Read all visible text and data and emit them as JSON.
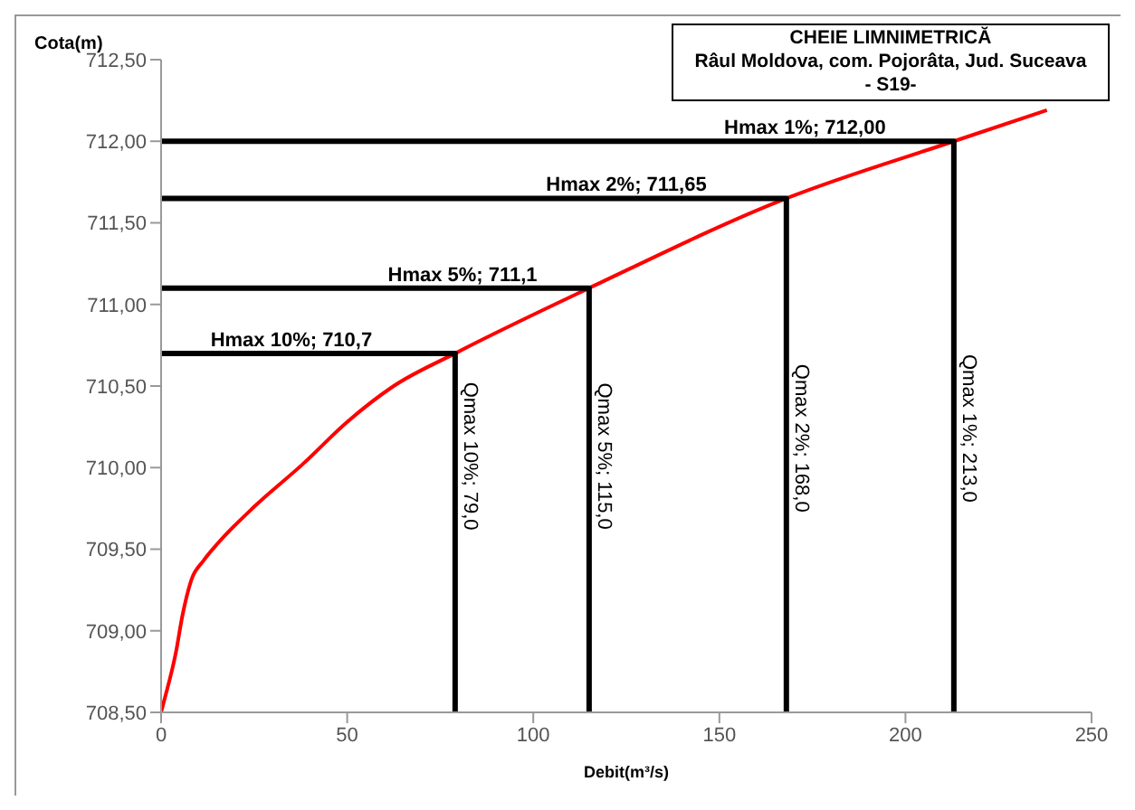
{
  "chart_data": {
    "type": "line",
    "title": "CHEIE LIMNIMETRICĂ",
    "subtitle": "Râul Moldova, com. Pojorâta, Jud. Suceava",
    "xlabel": "Debit(m³/s)",
    "ylabel": "Cota(m)",
    "marker": "none",
    "line_style": "solid",
    "xlim": [
      0,
      250
    ],
    "xticks": [
      0,
      50,
      100,
      150,
      200,
      250
    ],
    "ylim": [
      708.5,
      712.5
    ],
    "yticks": [
      {
        "value": 708.5,
        "label": "708,50"
      },
      {
        "value": 709,
        "label": "709,00"
      },
      {
        "value": 709.5,
        "label": "709,50"
      },
      {
        "value": 710,
        "label": "710,00"
      },
      {
        "value": 710.5,
        "label": "710,50"
      },
      {
        "value": 711,
        "label": "711,00"
      },
      {
        "value": 711.5,
        "label": "711,50"
      },
      {
        "value": 712,
        "label": "712,00"
      },
      {
        "value": 712.5,
        "label": "712,50"
      }
    ],
    "series": [
      {
        "color": "#ff0000",
        "x": [
          0,
          0.8,
          4,
          5.7,
          8.1,
          11.4,
          15.4,
          25,
          38,
          50,
          62.5,
          79,
          115,
          168,
          213,
          238
        ],
        "values": [
          708.5,
          708.57,
          708.87,
          709.09,
          709.31,
          709.43,
          709.54,
          709.76,
          710.02,
          710.28,
          710.5,
          710.7,
          711.1,
          711.65,
          712,
          712.19
        ]
      },
      {
        "color": "#000000",
        "x": [
          0,
          79,
          79
        ],
        "values": [
          710.7,
          710.7,
          708.5
        ]
      },
      {
        "color": "#000000",
        "x": [
          0,
          115,
          115
        ],
        "values": [
          711.1,
          711.1,
          708.5
        ]
      },
      {
        "color": "#000000",
        "x": [
          0,
          168,
          168
        ],
        "values": [
          711.65,
          711.65,
          708.5
        ]
      },
      {
        "color": "#000000",
        "x": [
          0,
          213,
          213
        ],
        "values": [
          712,
          712,
          708.5
        ]
      }
    ],
    "annotations": [
      "- S19-",
      {
        "text": "Hmax 10%; 710,7",
        "x": 35,
        "y": 710.7
      },
      {
        "text": "Hmax 5%; 711,1",
        "x": 81,
        "y": 711.1
      },
      {
        "text": "Hmax 2%; 711,65",
        "x": 125,
        "y": 711.65
      },
      {
        "text": "Hmax 1%; 712,00",
        "x": 173,
        "y": 712
      },
      {
        "text": "Qmax 10%; 79,0",
        "x": 79,
        "y": 710.07
      },
      {
        "text": "Qmax 5%; 115,0",
        "x": 115,
        "y": 710.07
      },
      {
        "text": "Qmax 2%; 168,0",
        "x": 168,
        "y": 710.18
      },
      {
        "text": "Qmax 1%; 213,0",
        "x": 213,
        "y": 710.24
      }
    ]
  }
}
